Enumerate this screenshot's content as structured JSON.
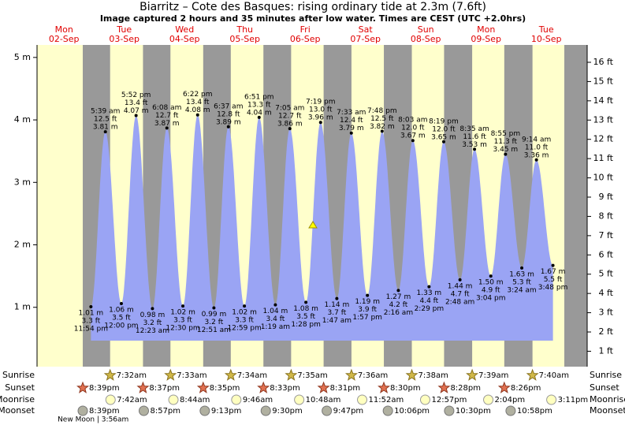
{
  "title": "Biarritz – Cote des Basques: rising  ordinary tide at 2.3m (7.6ft)",
  "subtitle": "Image captured 2 hours and 35 minutes after low water. Times are CEST (UTC +2.0hrs)",
  "y_axis": {
    "ylim": [
      0.05,
      5.2
    ],
    "yticks": [
      {
        "value": 1,
        "label": "1 m"
      },
      {
        "value": 2,
        "label": "2 m"
      },
      {
        "value": 3,
        "label": "3 m"
      },
      {
        "value": 4,
        "label": "4 m"
      },
      {
        "value": 5,
        "label": "5 m"
      }
    ]
  },
  "y2_axis": {
    "y2lim": [
      0.2,
      16.9
    ],
    "y2ticks": [
      {
        "value": 1,
        "label": "1 ft"
      },
      {
        "value": 2,
        "label": "2 ft"
      },
      {
        "value": 3,
        "label": "3 ft"
      },
      {
        "value": 4,
        "label": "4 ft"
      },
      {
        "value": 5,
        "label": "5 ft"
      },
      {
        "value": 6,
        "label": "6 ft"
      },
      {
        "value": 7,
        "label": "7 ft"
      },
      {
        "value": 8,
        "label": "8 ft"
      },
      {
        "value": 9,
        "label": "9 ft"
      },
      {
        "value": 10,
        "label": "10 ft"
      },
      {
        "value": 11,
        "label": "11 ft"
      },
      {
        "value": 12,
        "label": "12 ft"
      },
      {
        "value": 13,
        "label": "13 ft"
      },
      {
        "value": 14,
        "label": "14 ft"
      },
      {
        "value": 15,
        "label": "15 ft"
      },
      {
        "value": 16,
        "label": "16 ft"
      }
    ]
  },
  "row_labels": [
    "Sunrise",
    "Sunset",
    "Moonrise",
    "Moonset"
  ],
  "days": [
    {
      "weekday": "Mon",
      "date": "02-Sep",
      "sunset": "8:39pm",
      "moonset": "8:39pm",
      "moon_phase": "New Moon | 3:56am",
      "tides": [
        {
          "time": "11:54 pm",
          "m": 1.01,
          "m_label": "1.01 m",
          "ft_label": "3.3 ft"
        }
      ]
    },
    {
      "weekday": "Tue",
      "date": "03-Sep",
      "sunrise": "7:32am",
      "sunset": "8:37pm",
      "moonrise": "7:42am",
      "moonset": "8:57pm",
      "tides": [
        {
          "time": "5:39 am",
          "m": 3.81,
          "m_label": "3.81 m",
          "ft_label": "12.5 ft"
        },
        {
          "time": "12:00 pm",
          "m": 1.06,
          "m_label": "1.06 m",
          "ft_label": "3.5 ft"
        },
        {
          "time": "5:52 pm",
          "m": 4.07,
          "m_label": "4.07 m",
          "ft_label": "13.4 ft"
        }
      ]
    },
    {
      "weekday": "Wed",
      "date": "04-Sep",
      "sunrise": "7:33am",
      "sunset": "8:35pm",
      "moonrise": "8:44am",
      "moonset": "9:13pm",
      "tides": [
        {
          "time": "12:23 am",
          "m": 0.98,
          "m_label": "0.98 m",
          "ft_label": "3.2 ft"
        },
        {
          "time": "6:08 am",
          "m": 3.87,
          "m_label": "3.87 m",
          "ft_label": "12.7 ft"
        },
        {
          "time": "12:30 pm",
          "m": 1.02,
          "m_label": "1.02 m",
          "ft_label": "3.3 ft"
        },
        {
          "time": "6:22 pm",
          "m": 4.08,
          "m_label": "4.08 m",
          "ft_label": "13.4 ft"
        }
      ]
    },
    {
      "weekday": "Thu",
      "date": "05-Sep",
      "sunrise": "7:34am",
      "sunset": "8:33pm",
      "moonrise": "9:46am",
      "moonset": "9:30pm",
      "tides": [
        {
          "time": "12:51 am",
          "m": 0.99,
          "m_label": "0.99 m",
          "ft_label": "3.2 ft"
        },
        {
          "time": "6:37 am",
          "m": 3.89,
          "m_label": "3.89 m",
          "ft_label": "12.8 ft"
        },
        {
          "time": "12:59 pm",
          "m": 1.02,
          "m_label": "1.02 m",
          "ft_label": "3.3 ft"
        },
        {
          "time": "6:51 pm",
          "m": 4.04,
          "m_label": "4.04 m",
          "ft_label": "13.3 ft"
        }
      ]
    },
    {
      "weekday": "Fri",
      "date": "06-Sep",
      "sunrise": "7:35am",
      "sunset": "8:31pm",
      "moonrise": "10:48am",
      "moonset": "9:47pm",
      "tides": [
        {
          "time": "1:19 am",
          "m": 1.04,
          "m_label": "1.04 m",
          "ft_label": "3.4 ft"
        },
        {
          "time": "7:05 am",
          "m": 3.86,
          "m_label": "3.86 m",
          "ft_label": "12.7 ft"
        },
        {
          "time": "1:28 pm",
          "m": 1.08,
          "m_label": "1.08 m",
          "ft_label": "3.5 ft"
        },
        {
          "time": "7:19 pm",
          "m": 3.96,
          "m_label": "3.96 m",
          "ft_label": "13.0 ft"
        }
      ]
    },
    {
      "weekday": "Sat",
      "date": "07-Sep",
      "sunrise": "7:36am",
      "sunset": "8:30pm",
      "moonrise": "11:52am",
      "moonset": "10:06pm",
      "tides": [
        {
          "time": "1:47 am",
          "m": 1.14,
          "m_label": "1.14 m",
          "ft_label": "3.7 ft"
        },
        {
          "time": "7:33 am",
          "m": 3.79,
          "m_label": "3.79 m",
          "ft_label": "12.4 ft"
        },
        {
          "time": "1:57 pm",
          "m": 1.19,
          "m_label": "1.19 m",
          "ft_label": "3.9 ft"
        },
        {
          "time": "7:48 pm",
          "m": 3.82,
          "m_label": "3.82 m",
          "ft_label": "12.5 ft"
        }
      ]
    },
    {
      "weekday": "Sun",
      "date": "08-Sep",
      "sunrise": "7:38am",
      "sunset": "8:28pm",
      "moonrise": "12:57pm",
      "moonset": "10:30pm",
      "tides": [
        {
          "time": "2:16 am",
          "m": 1.27,
          "m_label": "1.27 m",
          "ft_label": "4.2 ft"
        },
        {
          "time": "8:03 am",
          "m": 3.67,
          "m_label": "3.67 m",
          "ft_label": "12.0 ft"
        },
        {
          "time": "2:29 pm",
          "m": 1.33,
          "m_label": "1.33 m",
          "ft_label": "4.4 ft"
        },
        {
          "time": "8:19 pm",
          "m": 3.65,
          "m_label": "3.65 m",
          "ft_label": "12.0 ft"
        }
      ]
    },
    {
      "weekday": "Mon",
      "date": "09-Sep",
      "sunrise": "7:39am",
      "sunset": "8:26pm",
      "moonrise": "2:04pm",
      "moonset": "10:58pm",
      "tides": [
        {
          "time": "2:48 am",
          "m": 1.44,
          "m_label": "1.44 m",
          "ft_label": "4.7 ft"
        },
        {
          "time": "8:35 am",
          "m": 3.53,
          "m_label": "3.53 m",
          "ft_label": "11.6 ft"
        },
        {
          "time": "3:04 pm",
          "m": 1.5,
          "m_label": "1.50 m",
          "ft_label": "4.9 ft"
        },
        {
          "time": "8:55 pm",
          "m": 3.45,
          "m_label": "3.45 m",
          "ft_label": "11.3 ft"
        }
      ]
    },
    {
      "weekday": "Tue",
      "date": "10-Sep",
      "sunrise": "7:40am",
      "moonrise": "3:11pm",
      "tides": [
        {
          "time": "3:24 am",
          "m": 1.63,
          "m_label": "1.63 m",
          "ft_label": "5.3 ft"
        },
        {
          "time": "9:14 am",
          "m": 3.36,
          "m_label": "3.36 m",
          "ft_label": "11.0 ft"
        },
        {
          "time": "3:48 pm",
          "m": 1.67,
          "m_label": "1.67 m",
          "ft_label": "5.5 ft"
        }
      ]
    }
  ]
}
